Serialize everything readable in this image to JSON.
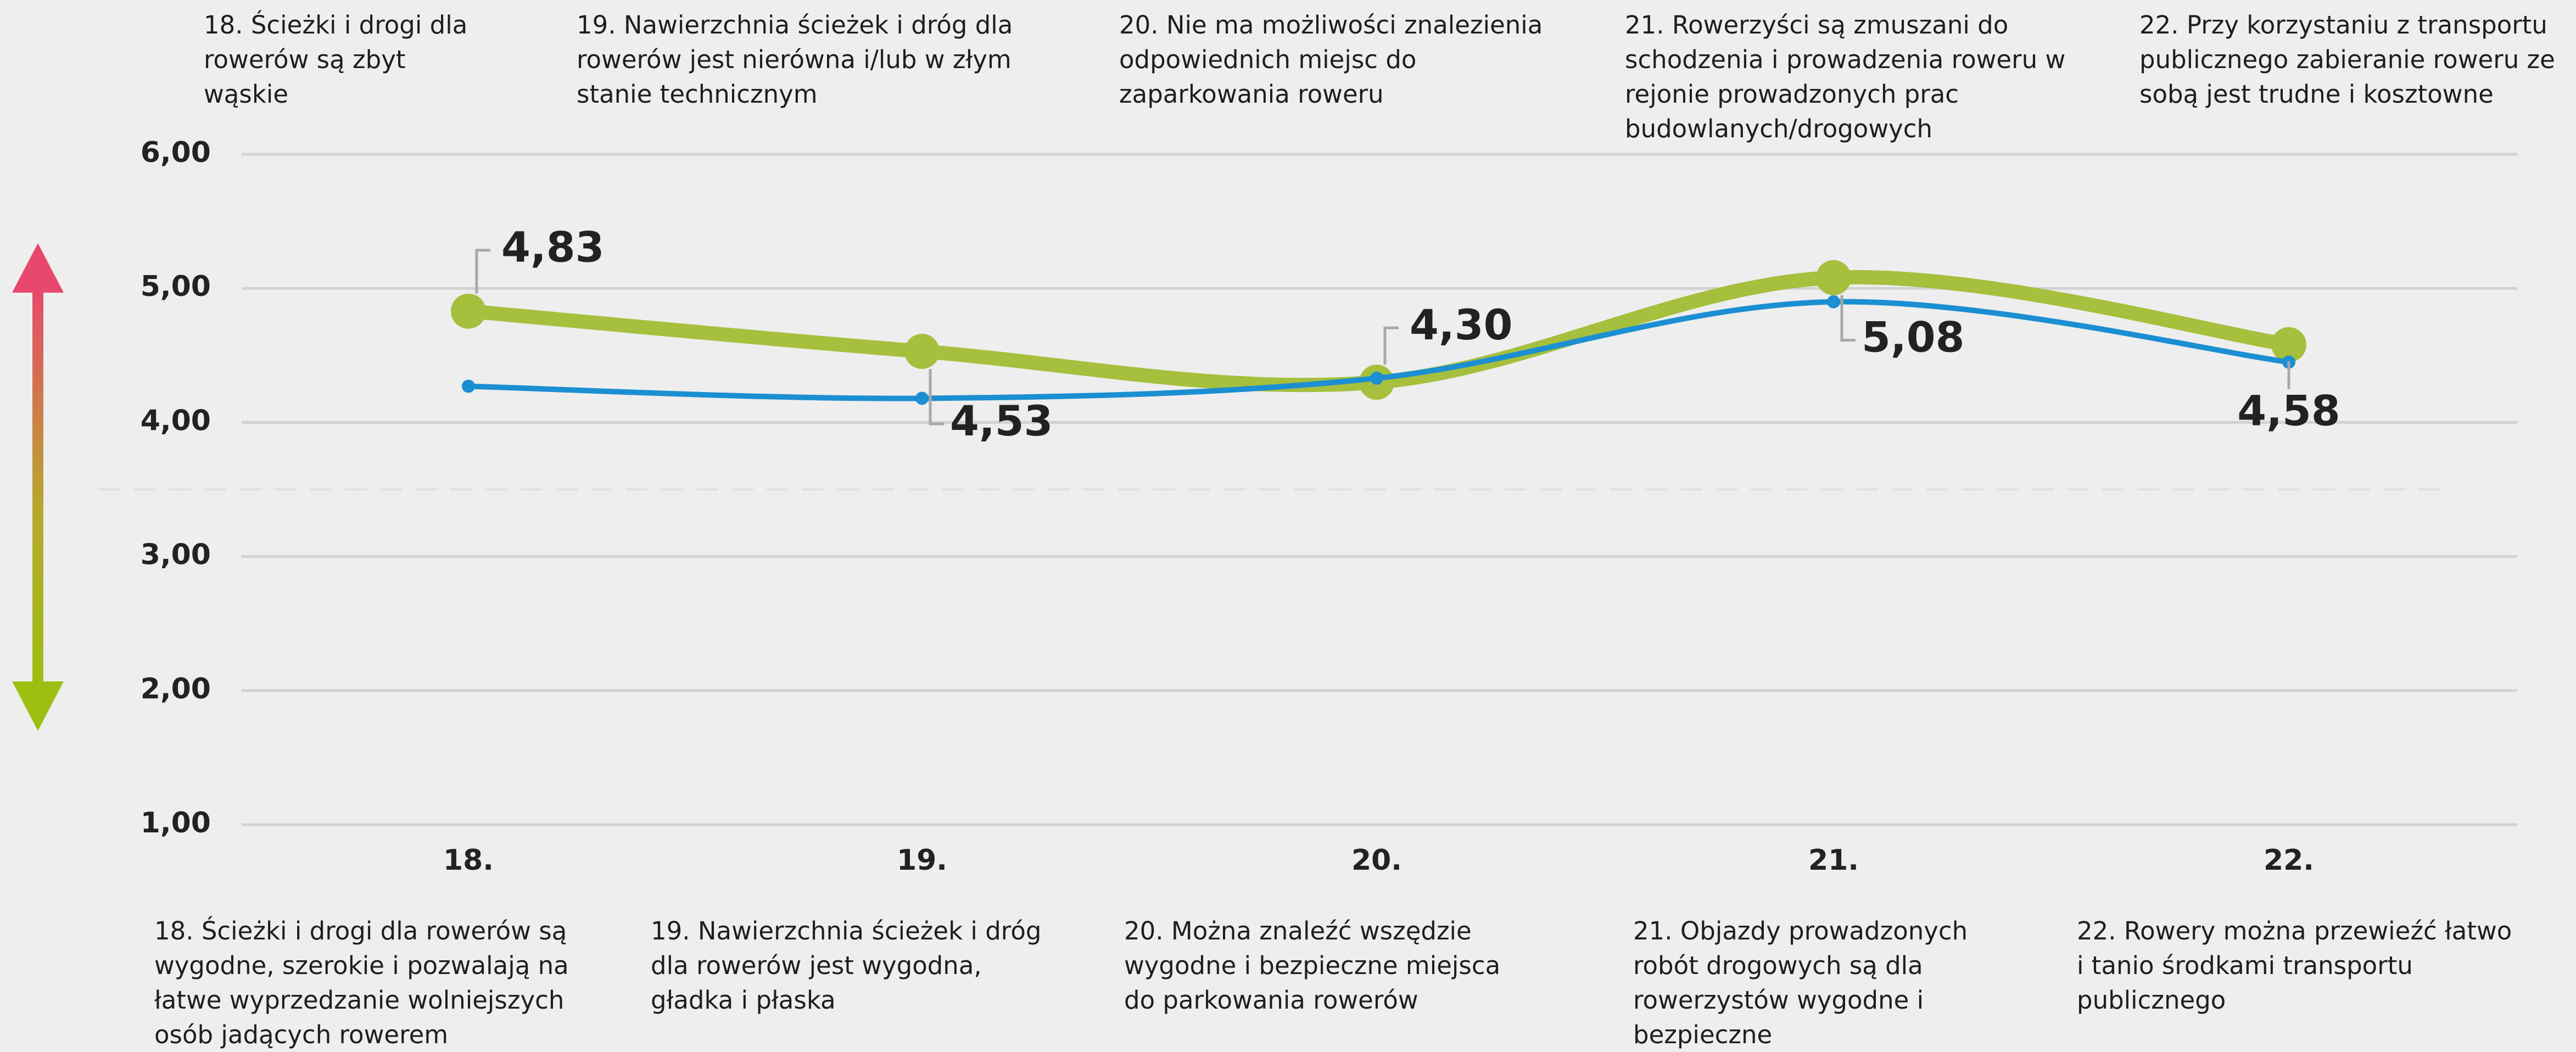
{
  "chart_data": {
    "type": "line",
    "categories": [
      "18.",
      "19.",
      "20.",
      "21.",
      "22."
    ],
    "top_annotations": [
      "18. Ścieżki i drogi dla rowerów są zbyt wąskie",
      "19. Nawierzchnia ścieżek i dróg dla rowerów jest nierówna i/lub w złym stanie technicznym",
      "20. Nie ma możliwości znalezienia odpowiednich miejsc do zaparkowania roweru",
      "21. Rowerzyści są zmuszani do schodzenia i prowadzenia roweru w rejonie prowadzonych prac budowlanych/drogowych",
      "22. Przy korzystaniu z transportu publicznego zabieranie roweru ze sobą jest trudne i kosztowne"
    ],
    "bottom_annotations": [
      "18. Ścieżki i drogi dla rowerów są wygodne, szerokie i pozwalają na łatwe wyprzedzanie wolniejszych osób jadących rowerem",
      "19. Nawierzchnia ścieżek i dróg dla rowerów jest wygodna, gładka i płaska",
      "20. Można znaleźć wszędzie wygodne i bezpieczne miejsca do parkowania rowerów",
      "21. Objazdy prowadzonych robót drogowych są dla rowerzystów wygodne i bezpieczne",
      "22. Rowery można przewieźć łatwo i tanio środkami transportu publicznego"
    ],
    "series": [
      {
        "color": "#a6bf3d",
        "values": [
          4.83,
          4.53,
          4.3,
          5.08,
          4.58
        ],
        "value_labels": [
          "4,83",
          "4,53",
          "4,30",
          "5,08",
          "4,58"
        ]
      },
      {
        "color": "#1b8fd1",
        "values": [
          4.27,
          4.18,
          4.33,
          4.9,
          4.45
        ]
      }
    ],
    "ylim": [
      1,
      6
    ],
    "yticks": [
      {
        "value": 1,
        "label": "1,00"
      },
      {
        "value": 2,
        "label": "2,00"
      },
      {
        "value": 3,
        "label": "3,00"
      },
      {
        "value": 4,
        "label": "4,00"
      },
      {
        "value": 5,
        "label": "5,00"
      },
      {
        "value": 6,
        "label": "6,00"
      }
    ],
    "reference_line": 3.5,
    "grid": true,
    "smooth": true
  }
}
